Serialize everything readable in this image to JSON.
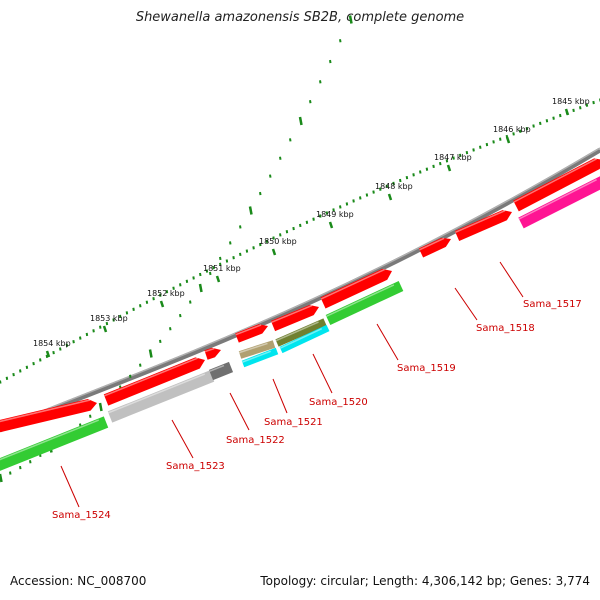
{
  "title": "Shewanella amazonensis SB2B, complete genome",
  "footer": {
    "accession": "Accession: NC_008700",
    "topology": "Topology: circular; Length: 4,306,142 bp; Genes: 3,774"
  },
  "colors": {
    "backbone": "#808080",
    "forward_gene": "#ff0000",
    "reverse_gene": "#33cc33",
    "pseudogene": "#c0c0c0",
    "dark_gene": "#707070",
    "rrna_gene": "#b0a070",
    "olive_gene": "#708030",
    "trna_gene": "#00e5ee",
    "magenta_gene": "#ff1493",
    "tick": "#1a8a1a",
    "label": "#cc0000"
  },
  "ruler": {
    "unit": "kbp",
    "major_ticks_kbp": [
      1845,
      1846,
      1847,
      1848,
      1849,
      1850,
      1851,
      1852,
      1853,
      1854
    ]
  },
  "genes": [
    {
      "label": "Sama_1517"
    },
    {
      "label": "Sama_1518"
    },
    {
      "label": "Sama_1519"
    },
    {
      "label": "Sama_1520"
    },
    {
      "label": "Sama_1521"
    },
    {
      "label": "Sama_1522"
    },
    {
      "label": "Sama_1523"
    },
    {
      "label": "Sama_1524"
    }
  ]
}
